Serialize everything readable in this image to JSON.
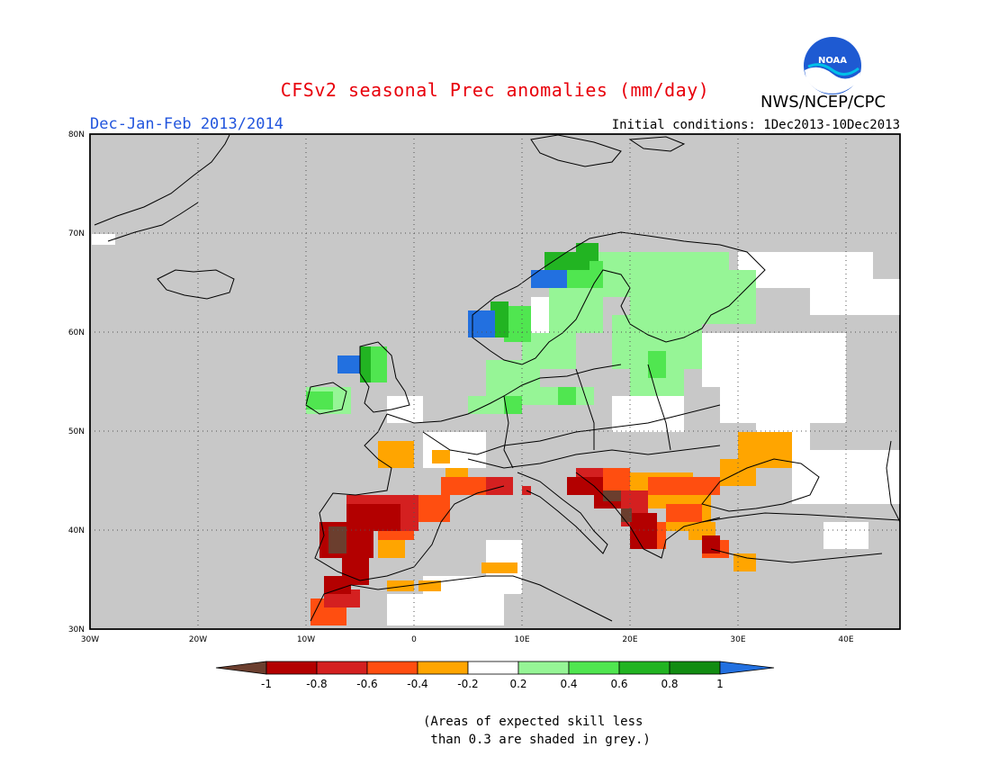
{
  "header": {
    "title": "CFSv2 seasonal Prec anomalies (mm/day)",
    "season": "Dec-Jan-Feb 2013/2014",
    "initial_conditions": "Initial conditions: 1Dec2013-10Dec2013",
    "agency": "NWS/NCEP/CPC",
    "logo_text": "NOAA"
  },
  "map": {
    "lon_range": [
      -30,
      45
    ],
    "lat_range": [
      30,
      80
    ],
    "lon_ticks": [
      "30W",
      "20W",
      "10W",
      "0",
      "10E",
      "20E",
      "30E",
      "40E"
    ],
    "lat_ticks": [
      "30N",
      "40N",
      "50N",
      "60N",
      "70N",
      "80N"
    ],
    "colors": {
      "background": "#c8c8c8",
      "ocean_grey": "#c8c8c8",
      "near_zero": "#ffffff"
    }
  },
  "legend": {
    "labels": [
      "-1",
      "-0.8",
      "-0.6",
      "-0.4",
      "-0.2",
      "0.2",
      "0.4",
      "0.6",
      "0.8",
      "1"
    ],
    "colors": [
      "#6b3e2e",
      "#b30000",
      "#d42020",
      "#ff4e10",
      "#ffa500",
      "#ffffff",
      "#96f596",
      "#50e650",
      "#22b422",
      "#128c12",
      "#2270e0"
    ]
  },
  "footnote": {
    "line1": "(Areas of expected skill less",
    "line2": " than 0.3 are shaded in grey.)"
  }
}
